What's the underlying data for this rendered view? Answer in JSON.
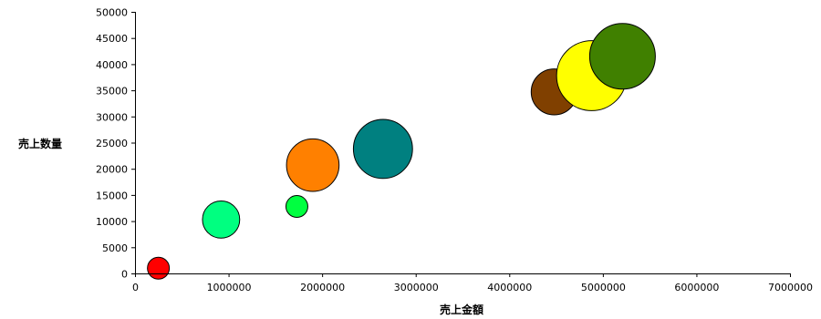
{
  "chart_data": {
    "type": "scatter",
    "title": "",
    "xlabel": "売上金額",
    "ylabel": "売上数量",
    "xlim": [
      0,
      7000000
    ],
    "ylim": [
      0,
      50000
    ],
    "xticks": [
      "0",
      "1000000",
      "2000000",
      "3000000",
      "4000000",
      "5000000",
      "6000000",
      "7000000"
    ],
    "yticks": [
      "0",
      "5000",
      "10000",
      "15000",
      "20000",
      "25000",
      "30000",
      "35000",
      "40000",
      "45000",
      "50000"
    ],
    "grid": false,
    "legend": "none",
    "series": [
      {
        "x": 250000,
        "y": 1000,
        "size": 10,
        "color": "#ff0000"
      },
      {
        "x": 920000,
        "y": 10300,
        "size": 17,
        "color": "#00ff80"
      },
      {
        "x": 1730000,
        "y": 12800,
        "size": 10,
        "color": "#00ff40"
      },
      {
        "x": 1900000,
        "y": 20700,
        "size": 24,
        "color": "#ff8000"
      },
      {
        "x": 2650000,
        "y": 23800,
        "size": 27,
        "color": "#008080"
      },
      {
        "x": 4480000,
        "y": 34700,
        "size": 21,
        "color": "#804000"
      },
      {
        "x": 4880000,
        "y": 37800,
        "size": 32,
        "color": "#ffff00"
      },
      {
        "x": 5210000,
        "y": 41500,
        "size": 30,
        "color": "#408000"
      }
    ]
  }
}
